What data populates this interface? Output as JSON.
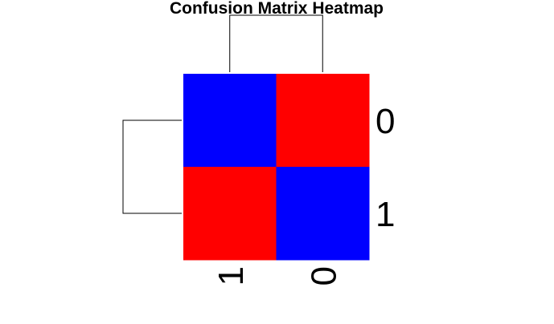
{
  "chart_data": {
    "type": "heatmap",
    "title": "Confusion Matrix Heatmap",
    "row_labels": [
      "0",
      "1"
    ],
    "col_labels": [
      "1",
      "0"
    ],
    "values": [
      [
        0,
        1
      ],
      [
        1,
        0
      ]
    ],
    "colors": {
      "low": "#0000ff",
      "high": "#ff0000"
    },
    "row_dendrogram": true,
    "col_dendrogram": true,
    "legend": false,
    "grid": false
  }
}
